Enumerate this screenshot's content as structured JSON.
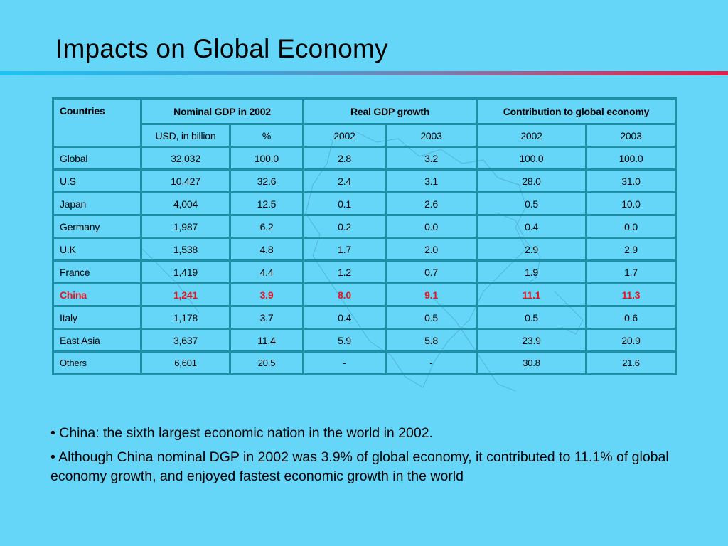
{
  "title": "Impacts on Global Economy",
  "table": {
    "head": {
      "countries": "Countries",
      "nominal_gdp": "Nominal GDP in 2002",
      "real_growth": "Real GDP growth",
      "contribution": "Contribution to global economy"
    },
    "subhead": {
      "usd": "USD, in billion",
      "pct": "%",
      "g2002": "2002",
      "g2003": "2003",
      "c2002": "2002",
      "c2003": "2003"
    },
    "rows": [
      {
        "country": "Global",
        "usd": "32,032",
        "pct": "100.0",
        "g2002": "2.8",
        "g2003": "3.2",
        "c2002": "100.0",
        "c2003": "100.0"
      },
      {
        "country": "U.S",
        "usd": "10,427",
        "pct": "32.6",
        "g2002": "2.4",
        "g2003": "3.1",
        "c2002": "28.0",
        "c2003": "31.0"
      },
      {
        "country": "Japan",
        "usd": "4,004",
        "pct": "12.5",
        "g2002": "0.1",
        "g2003": "2.6",
        "c2002": "0.5",
        "c2003": "10.0"
      },
      {
        "country": "Germany",
        "usd": "1,987",
        "pct": "6.2",
        "g2002": "0.2",
        "g2003": "0.0",
        "c2002": "0.4",
        "c2003": "0.0"
      },
      {
        "country": "U.K",
        "usd": "1,538",
        "pct": "4.8",
        "g2002": "1.7",
        "g2003": "2.0",
        "c2002": "2.9",
        "c2003": "2.9"
      },
      {
        "country": "France",
        "usd": "1,419",
        "pct": "4.4",
        "g2002": "1.2",
        "g2003": "0.7",
        "c2002": "1.9",
        "c2003": "1.7"
      },
      {
        "country": "China",
        "usd": "1,241",
        "pct": "3.9",
        "g2002": "8.0",
        "g2003": "9.1",
        "c2002": "11.1",
        "c2003": "11.3"
      },
      {
        "country": "Italy",
        "usd": "1,178",
        "pct": "3.7",
        "g2002": "0.4",
        "g2003": "0.5",
        "c2002": "0.5",
        "c2003": "0.6"
      },
      {
        "country": "East Asia",
        "usd": "3,637",
        "pct": "11.4",
        "g2002": "5.9",
        "g2003": "5.8",
        "c2002": "23.9",
        "c2003": "20.9"
      },
      {
        "country": "Others",
        "usd": "6,601",
        "pct": "20.5",
        "g2002": "-",
        "g2003": "-",
        "c2002": "30.8",
        "c2003": "21.6"
      }
    ]
  },
  "bullets": [
    "• China: the sixth largest economic nation in the world in 2002.",
    "• Although China nominal DGP in 2002 was 3.9% of global economy, it contributed to 11.1% of global economy growth, and enjoyed fastest economic growth in the world"
  ],
  "colors": {
    "background": "#66d6f8",
    "table_border": "#1f8fa6",
    "highlight_text": "#e8141e"
  }
}
